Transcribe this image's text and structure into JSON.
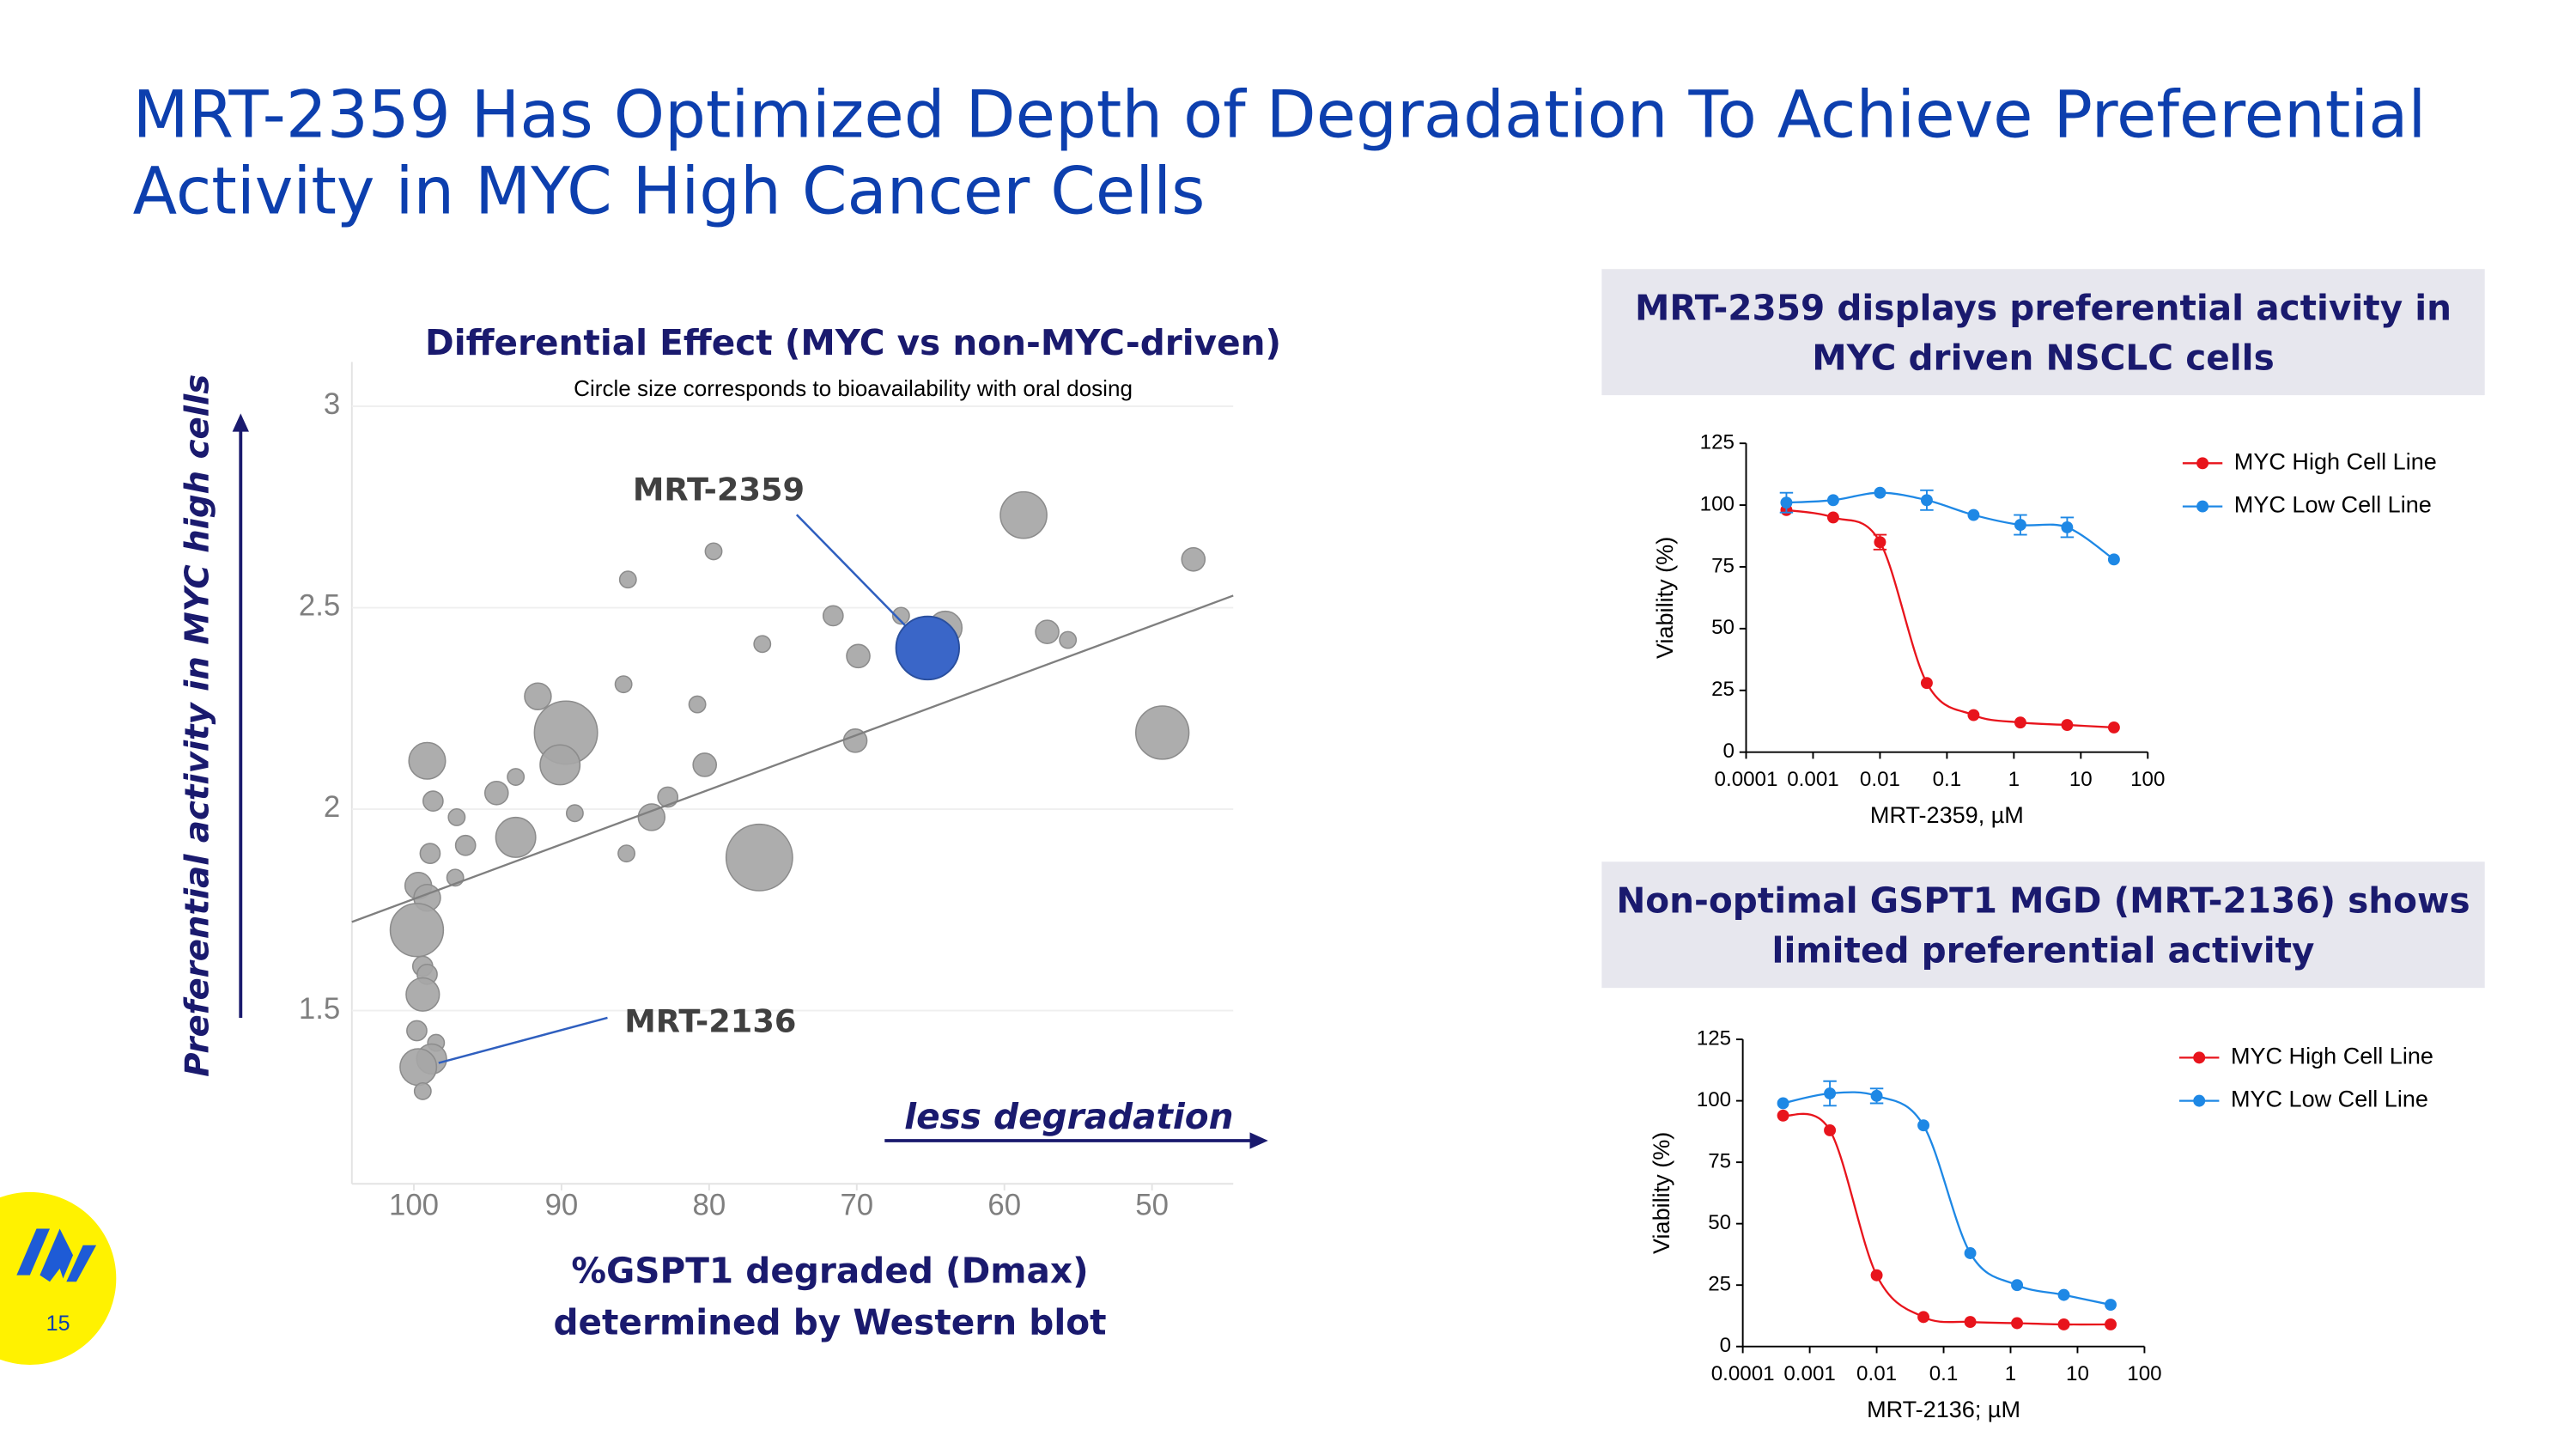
{
  "header": {
    "title": [
      "MRT-2359 Has Optimized Depth of Degradation To Achieve Preferential",
      "Activity in MYC High Cancer Cells"
    ]
  },
  "page_number": 15,
  "chart_data": [
    {
      "type": "bubble",
      "title": "Differential Effect (MYC vs non-MYC-driven)",
      "subtitle": "Circle size corresponds to bioavailability with oral dosing",
      "x_label": [
        "%GSPT1 degraded (Dmax)",
        "determined by Western blot"
      ],
      "y_label": "Preferential activity in MYC high cells",
      "arrow_label": "less degradation",
      "x": [
        58.7,
        47.2,
        79.7,
        85.5,
        67.0,
        71.6,
        64.0,
        57.1,
        55.7,
        76.4,
        69.9,
        85.8,
        91.6,
        80.8,
        89.7,
        90.1,
        49.3,
        70.1,
        99.1,
        93.1,
        80.3,
        94.4,
        82.8,
        98.7,
        89.1,
        97.1,
        83.9,
        93.1,
        76.6,
        85.6,
        98.9,
        96.5,
        97.2,
        99.7,
        99.1,
        99.8,
        99.4,
        99.1,
        99.4,
        99.8,
        98.5,
        98.8,
        99.7,
        99.4
      ],
      "y": [
        2.73,
        2.62,
        2.64,
        2.57,
        2.48,
        2.48,
        2.45,
        2.44,
        2.42,
        2.41,
        2.38,
        2.31,
        2.28,
        2.26,
        2.19,
        2.11,
        2.19,
        2.17,
        2.12,
        2.08,
        2.11,
        2.04,
        2.03,
        2.02,
        1.99,
        1.98,
        1.98,
        1.93,
        1.88,
        1.89,
        1.89,
        1.91,
        1.83,
        1.81,
        1.78,
        1.7,
        1.61,
        1.59,
        1.54,
        1.45,
        1.42,
        1.38,
        1.36,
        1.3
      ],
      "sizes": [
        14,
        7,
        5,
        5,
        5,
        6,
        10,
        7,
        5,
        5,
        7,
        5,
        8,
        5,
        19,
        12,
        16,
        7,
        11,
        5,
        7,
        7,
        6,
        6,
        5,
        5,
        8,
        12,
        20,
        5,
        6,
        6,
        5,
        8,
        8,
        16,
        6,
        6,
        10,
        6,
        5,
        9,
        11,
        5
      ],
      "color": "#a6a6a6",
      "xlim": [
        104.2,
        44.5
      ],
      "ylim": [
        1.07,
        3.11
      ],
      "xticks": [
        100,
        90,
        80,
        70,
        60,
        50
      ],
      "yticks": [
        3,
        2.5,
        2,
        1.5
      ],
      "grid": true,
      "trendline": {
        "x": [
          104.2,
          44.5
        ],
        "y": [
          1.72,
          2.53
        ],
        "color": "#7f7f7f"
      },
      "annotations": [
        {
          "text": "MRT-2359",
          "x": 65.2,
          "y": 2.4,
          "size": 19,
          "color": "#3a66c8"
        },
        {
          "text": "MRT-2136",
          "x": 99.0,
          "y": 1.37
        }
      ]
    },
    {
      "type": "line",
      "x_scale": "log",
      "title": [
        "MRT-2359 displays preferential activity in",
        "MYC driven NSCLC cells"
      ],
      "x_label": "MRT-2359, µM",
      "y_label": "Viability (%)",
      "x": [
        0.0004,
        0.002,
        0.01,
        0.05,
        0.25,
        1.25,
        6.25,
        31.25
      ],
      "series": [
        {
          "name": "MYC High Cell Line",
          "color": "#e8141c",
          "values": [
            98,
            95,
            85,
            28,
            15,
            12,
            11,
            10
          ],
          "errors": [
            null,
            null,
            3,
            null,
            null,
            null,
            null,
            null
          ]
        },
        {
          "name": "MYC Low Cell Line",
          "color": "#1e88e5",
          "values": [
            101,
            102,
            105,
            102,
            96,
            92,
            91,
            78
          ],
          "errors": [
            4,
            null,
            null,
            4,
            null,
            4,
            4,
            null
          ]
        }
      ],
      "xlim": [
        0.0001,
        100
      ],
      "ylim": [
        0,
        125
      ],
      "xticks": [
        0.0001,
        0.001,
        0.01,
        0.1,
        1,
        10,
        100
      ],
      "yticks": [
        0,
        25,
        50,
        75,
        100,
        125
      ],
      "legend": "upper right"
    },
    {
      "type": "line",
      "x_scale": "log",
      "title": [
        "Non-optimal GSPT1 MGD (MRT-2136) shows",
        "limited preferential activity"
      ],
      "x_label": "MRT-2136; µM",
      "y_label": "Viability (%)",
      "x": [
        0.0004,
        0.002,
        0.01,
        0.05,
        0.25,
        1.25,
        6.25,
        31.25
      ],
      "series": [
        {
          "name": "MYC High Cell Line",
          "color": "#e8141c",
          "values": [
            94,
            88,
            29,
            12,
            10,
            9.5,
            9,
            9
          ],
          "errors": [
            null,
            null,
            null,
            null,
            null,
            null,
            null,
            null
          ]
        },
        {
          "name": "MYC Low Cell Line",
          "color": "#1e88e5",
          "values": [
            99,
            103,
            102,
            90,
            38,
            25,
            21,
            17
          ],
          "errors": [
            null,
            5,
            3,
            null,
            null,
            null,
            null,
            null
          ]
        }
      ],
      "xlim": [
        0.0001,
        100
      ],
      "ylim": [
        0,
        125
      ],
      "xticks": [
        0.0001,
        0.001,
        0.01,
        0.1,
        1,
        10,
        100
      ],
      "yticks": [
        0,
        25,
        50,
        75,
        100,
        125
      ],
      "legend": "upper right"
    }
  ]
}
